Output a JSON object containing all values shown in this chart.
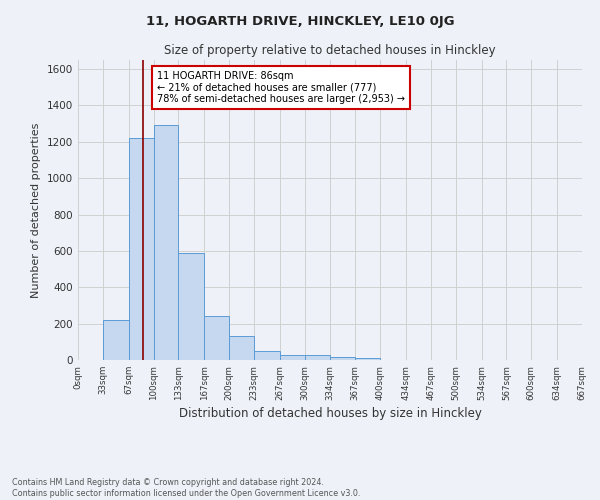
{
  "title": "11, HOGARTH DRIVE, HINCKLEY, LE10 0JG",
  "subtitle": "Size of property relative to detached houses in Hinckley",
  "xlabel": "Distribution of detached houses by size in Hinckley",
  "ylabel": "Number of detached properties",
  "footnote1": "Contains HM Land Registry data © Crown copyright and database right 2024.",
  "footnote2": "Contains public sector information licensed under the Open Government Licence v3.0.",
  "bin_edges": [
    0,
    33,
    67,
    100,
    133,
    167,
    200,
    233,
    267,
    300,
    334,
    367,
    400,
    434,
    467,
    500,
    534,
    567,
    600,
    634,
    667
  ],
  "bar_heights": [
    0,
    220,
    1220,
    1290,
    590,
    240,
    130,
    50,
    25,
    30,
    15,
    10,
    0,
    0,
    0,
    0,
    0,
    0,
    0,
    0
  ],
  "bar_color": "#c5d8f0",
  "bar_edge_color": "#5b9bd5",
  "vline_color": "#8b0000",
  "vline_x": 86,
  "annotation_text": "11 HOGARTH DRIVE: 86sqm\n← 21% of detached houses are smaller (777)\n78% of semi-detached houses are larger (2,953) →",
  "annotation_box_color": "#ffffff",
  "annotation_box_edge_color": "#cc0000",
  "ylim": [
    0,
    1650
  ],
  "yticks": [
    0,
    200,
    400,
    600,
    800,
    1000,
    1200,
    1400,
    1600
  ],
  "xtick_labels": [
    "0sqm",
    "33sqm",
    "67sqm",
    "100sqm",
    "133sqm",
    "167sqm",
    "200sqm",
    "233sqm",
    "267sqm",
    "300sqm",
    "334sqm",
    "367sqm",
    "400sqm",
    "434sqm",
    "467sqm",
    "500sqm",
    "534sqm",
    "567sqm",
    "600sqm",
    "634sqm",
    "667sqm"
  ],
  "grid_color": "#d0d0d0",
  "bg_color": "#eef2f8"
}
